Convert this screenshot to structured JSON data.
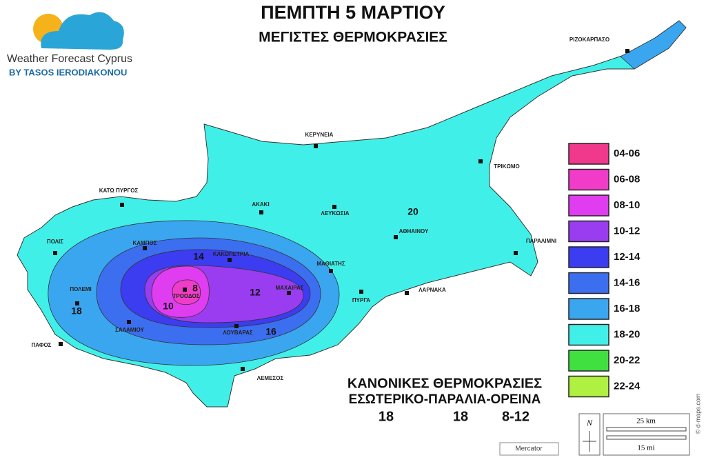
{
  "header": {
    "title": "ΠΕΜΠΤΗ 5 ΜΑΡΤΙΟΥ",
    "subtitle": "ΜΕΓΙΣΤΕΣ ΘΕΡΜΟΚΡΑΣΙΕΣ"
  },
  "logo": {
    "name": "Weather Forecast Cyprus",
    "byline": "BY TASOS IERODIAKONOU"
  },
  "towns": [
    "ΡΙΖΟΚΑΡΠΑΣΟ",
    "ΚΕΡΥΝΕΙΑ",
    "ΤΡΙΚΩΜΟ",
    "ΚΑΤΩ ΠΥΡΓΟΣ",
    "ΑΚΑΚΙ",
    "ΛΕΥΚΩΣΙΑ",
    "ΑΘΗΑΙΝΟΥ",
    "ΠΑΡΑΛΙΜΝΙ",
    "ΠΟΛΙΣ",
    "ΚΑΜΠΟΣ",
    "ΚΑΚΟΠΕΤΡΙΑ",
    "ΜΑΘΙΑΤΗΣ",
    "ΠΟΛΕΜΙ",
    "ΤΡΟΟΔΟΣ",
    "ΜΑΧΑΙΡΑΣ",
    "ΠΥΡΓΑ",
    "ΛΑΡΝΑΚΑ",
    "ΣΑΛΑΜΙΟΥ",
    "ΛΟΥΒΑΡΑΣ",
    "ΠΑΦΟΣ",
    "ΛΕΜΕΣΟΣ"
  ],
  "contour_labels": [
    20,
    14,
    8,
    12,
    10,
    16,
    18
  ],
  "legend": [
    {
      "label": "04-06",
      "color": "#f0388c"
    },
    {
      "label": "06-08",
      "color": "#f03cc8"
    },
    {
      "label": "08-10",
      "color": "#e03cf0"
    },
    {
      "label": "10-12",
      "color": "#9a3cf0"
    },
    {
      "label": "12-14",
      "color": "#3c3cf0"
    },
    {
      "label": "14-16",
      "color": "#3c6ef0"
    },
    {
      "label": "16-18",
      "color": "#3aa6f0"
    },
    {
      "label": "18-20",
      "color": "#40f0e8"
    },
    {
      "label": "20-22",
      "color": "#40e040"
    },
    {
      "label": "22-24",
      "color": "#b0f040"
    }
  ],
  "normals": {
    "title": "ΚΑΝΟΝΙΚΕΣ ΘΕΡΜΟΚΡΑΣΙΕΣ",
    "regions": "ΕΣΩΤΕΡΙΚΟ-ΠΑΡΑΛΙΑ-ΟΡΕΙΝΑ",
    "values": [
      "18",
      "18",
      "8-12"
    ]
  },
  "scale": {
    "north": "N",
    "km": "25 km",
    "mi": "15 mi",
    "projection": "Mercator",
    "credit": "© d-maps.com"
  }
}
